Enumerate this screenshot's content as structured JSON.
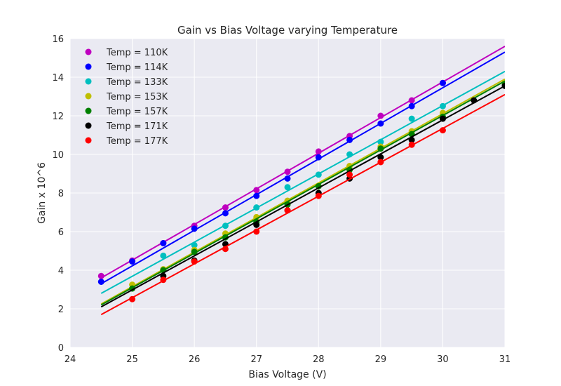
{
  "chart_data": {
    "type": "scatter",
    "title": "Gain vs Bias Voltage varying Temperature",
    "xlabel": "Bias Voltage (V)",
    "ylabel": "Gain x 10^6",
    "xlim": [
      24,
      31
    ],
    "ylim": [
      0,
      16
    ],
    "xticks": [
      24,
      25,
      26,
      27,
      28,
      29,
      30,
      31
    ],
    "yticks": [
      0,
      2,
      4,
      6,
      8,
      10,
      12,
      14,
      16
    ],
    "grid": true,
    "legend_position": "top-left",
    "background": "#EAEAF2",
    "series": [
      {
        "name": "Temp = 110K",
        "color": "#BF00BF",
        "points": [
          [
            24.5,
            3.7
          ],
          [
            25,
            4.5
          ],
          [
            25.5,
            5.4
          ],
          [
            26,
            6.3
          ],
          [
            26.5,
            7.25
          ],
          [
            27,
            8.15
          ],
          [
            27.5,
            9.1
          ],
          [
            28,
            10.15
          ],
          [
            28.5,
            10.95
          ],
          [
            29,
            12.0
          ],
          [
            29.5,
            12.8
          ],
          [
            30,
            13.7
          ]
        ],
        "fit": [
          [
            24.5,
            3.6
          ],
          [
            31,
            15.6
          ]
        ]
      },
      {
        "name": "Temp = 114K",
        "color": "#0000FF",
        "points": [
          [
            24.5,
            3.4
          ],
          [
            25,
            4.45
          ],
          [
            25.5,
            5.4
          ],
          [
            26,
            6.15
          ],
          [
            26.5,
            6.95
          ],
          [
            27,
            7.85
          ],
          [
            27.5,
            8.75
          ],
          [
            28,
            9.85
          ],
          [
            28.5,
            10.75
          ],
          [
            29,
            11.6
          ],
          [
            29.5,
            12.5
          ],
          [
            30,
            13.7
          ]
        ],
        "fit": [
          [
            24.5,
            3.3
          ],
          [
            31,
            15.3
          ]
        ]
      },
      {
        "name": "Temp = 133K",
        "color": "#00BFBF",
        "points": [
          [
            25.5,
            4.75
          ],
          [
            26,
            5.3
          ],
          [
            26.5,
            6.3
          ],
          [
            27,
            7.25
          ],
          [
            27.5,
            8.3
          ],
          [
            28,
            8.95
          ],
          [
            28.5,
            10.0
          ],
          [
            29,
            10.65
          ],
          [
            29.5,
            11.85
          ],
          [
            30,
            12.5
          ]
        ],
        "fit": [
          [
            24.5,
            2.8
          ],
          [
            31,
            14.3
          ]
        ]
      },
      {
        "name": "Temp = 153K",
        "color": "#BFBF00",
        "points": [
          [
            25,
            3.25
          ],
          [
            25.5,
            4.05
          ],
          [
            26,
            5.05
          ],
          [
            26.5,
            5.9
          ],
          [
            27,
            6.75
          ],
          [
            27.5,
            7.6
          ],
          [
            28,
            8.35
          ],
          [
            28.5,
            9.4
          ],
          [
            29,
            10.4
          ],
          [
            29.5,
            11.2
          ],
          [
            30,
            12.15
          ],
          [
            31,
            13.7
          ]
        ],
        "fit": [
          [
            24.5,
            2.25
          ],
          [
            31,
            13.9
          ]
        ]
      },
      {
        "name": "Temp = 157K",
        "color": "#008000",
        "points": [
          [
            25,
            3.05
          ],
          [
            25.5,
            4.0
          ],
          [
            26,
            4.95
          ],
          [
            26.5,
            5.7
          ],
          [
            27,
            6.5
          ],
          [
            27.5,
            7.4
          ],
          [
            28,
            8.35
          ],
          [
            28.5,
            9.2
          ],
          [
            29,
            10.3
          ],
          [
            29.5,
            11.05
          ],
          [
            30,
            11.95
          ],
          [
            31,
            13.6
          ]
        ],
        "fit": [
          [
            24.5,
            2.2
          ],
          [
            31,
            13.8
          ]
        ]
      },
      {
        "name": "Temp = 171K",
        "color": "#000000",
        "points": [
          [
            25.5,
            3.7
          ],
          [
            26,
            4.5
          ],
          [
            26.5,
            5.35
          ],
          [
            27,
            6.35
          ],
          [
            27.5,
            7.1
          ],
          [
            28,
            8.0
          ],
          [
            28.5,
            8.75
          ],
          [
            29,
            9.85
          ],
          [
            29.5,
            10.75
          ],
          [
            30,
            11.85
          ],
          [
            30.5,
            12.8
          ],
          [
            31,
            13.55
          ]
        ],
        "fit": [
          [
            24.5,
            2.1
          ],
          [
            31,
            13.55
          ]
        ]
      },
      {
        "name": "Temp = 177K",
        "color": "#FF0000",
        "points": [
          [
            25,
            2.5
          ],
          [
            25.5,
            3.5
          ],
          [
            26,
            4.45
          ],
          [
            26.5,
            5.1
          ],
          [
            27,
            6.0
          ],
          [
            27.5,
            7.1
          ],
          [
            28,
            7.85
          ],
          [
            28.5,
            8.95
          ],
          [
            29,
            9.6
          ],
          [
            29.5,
            10.5
          ],
          [
            30,
            11.25
          ]
        ],
        "fit": [
          [
            24.5,
            1.7
          ],
          [
            31,
            13.1
          ]
        ]
      }
    ]
  }
}
